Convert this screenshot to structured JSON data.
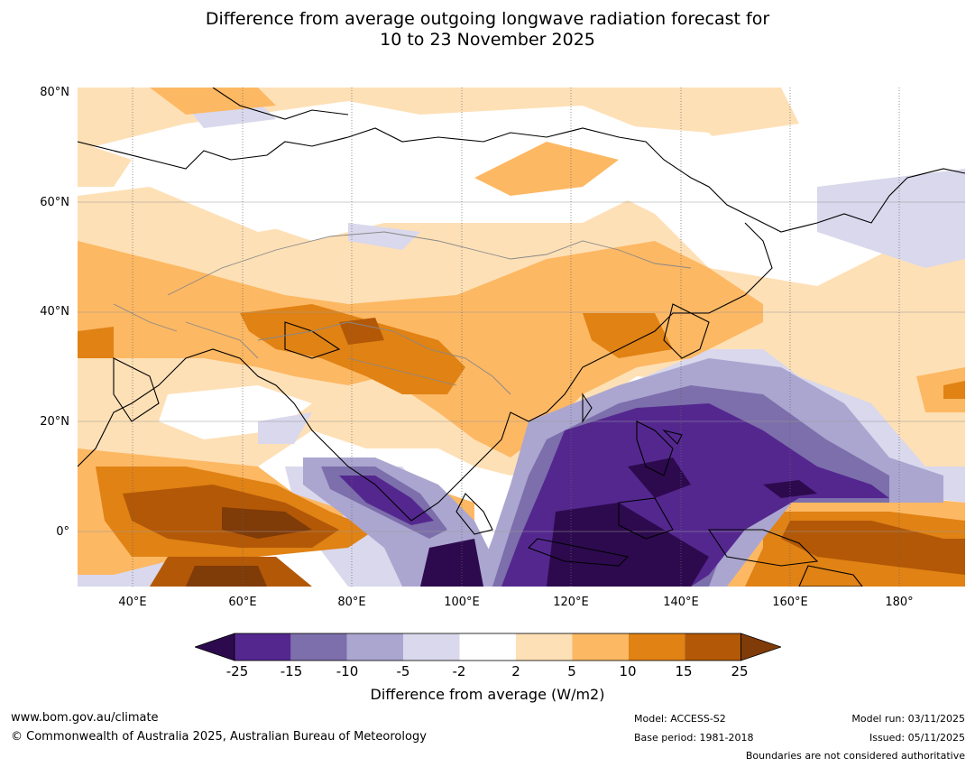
{
  "title": {
    "line1": "Difference from average outgoing longwave radiation forecast for",
    "line2": "10 to 23 November 2025"
  },
  "map": {
    "lat_labels": [
      "80°N",
      "60°N",
      "40°N",
      "20°N",
      "0°"
    ],
    "lon_labels": [
      "40°E",
      "60°E",
      "80°E",
      "100°E",
      "120°E",
      "140°E",
      "160°E",
      "180°"
    ],
    "extent": {
      "lon_min": 30,
      "lon_max": 192,
      "lat_min": -10,
      "lat_max": 81
    }
  },
  "colorbar": {
    "ticks": [
      "-25",
      "-15",
      "-10",
      "-5",
      "-2",
      "2",
      "5",
      "10",
      "15",
      "25"
    ],
    "colors": {
      "below": "#2d0a4e",
      "bins": [
        "#54278f",
        "#7c6fab",
        "#aba6d0",
        "#d9d8ec",
        "#ffffff",
        "#fee0b6",
        "#fdb863",
        "#e08214",
        "#b35806"
      ],
      "above": "#7f3b08"
    },
    "label": "Difference from average (W/m2)"
  },
  "footer": {
    "website": "www.bom.gov.au/climate",
    "copyright": "© Commonwealth of Australia 2025, Australian Bureau of Meteorology",
    "model": "Model: ACCESS-S2",
    "base_period": "Base period: 1981-2018",
    "model_run": "Model run: 03/11/2025",
    "issued": "Issued: 05/11/2025",
    "disclaimer": "Boundaries are not considered authoritative"
  }
}
